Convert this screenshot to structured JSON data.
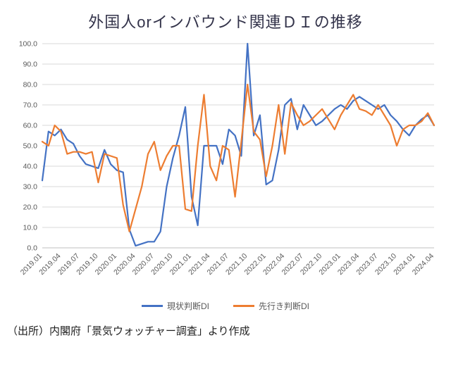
{
  "chart_data": {
    "type": "line",
    "title": "外国人orインバウンド関連ＤＩの推移",
    "xlabel": "",
    "ylabel": "",
    "ylim": [
      0,
      100
    ],
    "ytick_step": 10,
    "xtick_step": 3,
    "grid": true,
    "legend_position": "bottom",
    "x": [
      "2019.01",
      "2019.02",
      "2019.03",
      "2019.04",
      "2019.05",
      "2019.06",
      "2019.07",
      "2019.08",
      "2019.09",
      "2019.10",
      "2019.11",
      "2019.12",
      "2020.01",
      "2020.02",
      "2020.03",
      "2020.04",
      "2020.05",
      "2020.06",
      "2020.07",
      "2020.08",
      "2020.09",
      "2020.10",
      "2020.11",
      "2020.12",
      "2021.01",
      "2021.02",
      "2021.03",
      "2021.04",
      "2021.05",
      "2021.06",
      "2021.07",
      "2021.08",
      "2021.09",
      "2021.10",
      "2021.11",
      "2021.12",
      "2022.01",
      "2022.02",
      "2022.03",
      "2022.04",
      "2022.05",
      "2022.06",
      "2022.07",
      "2022.08",
      "2022.09",
      "2022.10",
      "2022.11",
      "2022.12",
      "2023.01",
      "2023.02",
      "2023.03",
      "2023.04",
      "2023.05",
      "2023.06",
      "2023.07",
      "2023.08",
      "2023.09",
      "2023.10",
      "2023.11",
      "2023.12",
      "2024.01",
      "2024.02",
      "2024.03",
      "2024.04"
    ],
    "series": [
      {
        "id": "current",
        "name": "現状判断DI",
        "color": "#4472C4",
        "values": [
          33,
          57,
          55,
          58,
          53,
          51,
          45,
          41,
          40,
          39,
          48,
          41,
          38,
          37,
          9,
          1,
          2,
          3,
          3,
          8,
          30,
          44,
          55,
          69,
          25,
          11,
          50,
          50,
          50,
          41,
          58,
          55,
          45,
          100,
          55,
          65,
          31,
          33,
          48,
          70,
          73,
          58,
          70,
          65,
          60,
          62,
          65,
          68,
          70,
          68,
          72,
          74,
          72,
          70,
          68,
          70,
          65,
          62,
          58,
          55,
          60,
          63,
          65,
          60
        ]
      },
      {
        "id": "outlook",
        "name": "先行き判断DI",
        "color": "#ED7D31",
        "values": [
          52,
          50,
          60,
          57,
          46,
          47,
          47,
          46,
          47,
          32,
          46,
          45,
          44,
          21,
          8,
          19,
          30,
          46,
          52,
          38,
          45,
          50,
          50,
          19,
          18,
          50,
          75,
          40,
          33,
          50,
          48,
          25,
          52,
          80,
          57,
          53,
          35,
          50,
          70,
          46,
          71,
          65,
          60,
          62,
          65,
          68,
          63,
          58,
          65,
          70,
          75,
          68,
          67,
          65,
          70,
          65,
          60,
          50,
          58,
          60,
          60,
          62,
          66,
          60
        ]
      }
    ]
  },
  "footer": {
    "source_note": "（出所）内閣府「景気ウォッチャー調査」より作成"
  }
}
